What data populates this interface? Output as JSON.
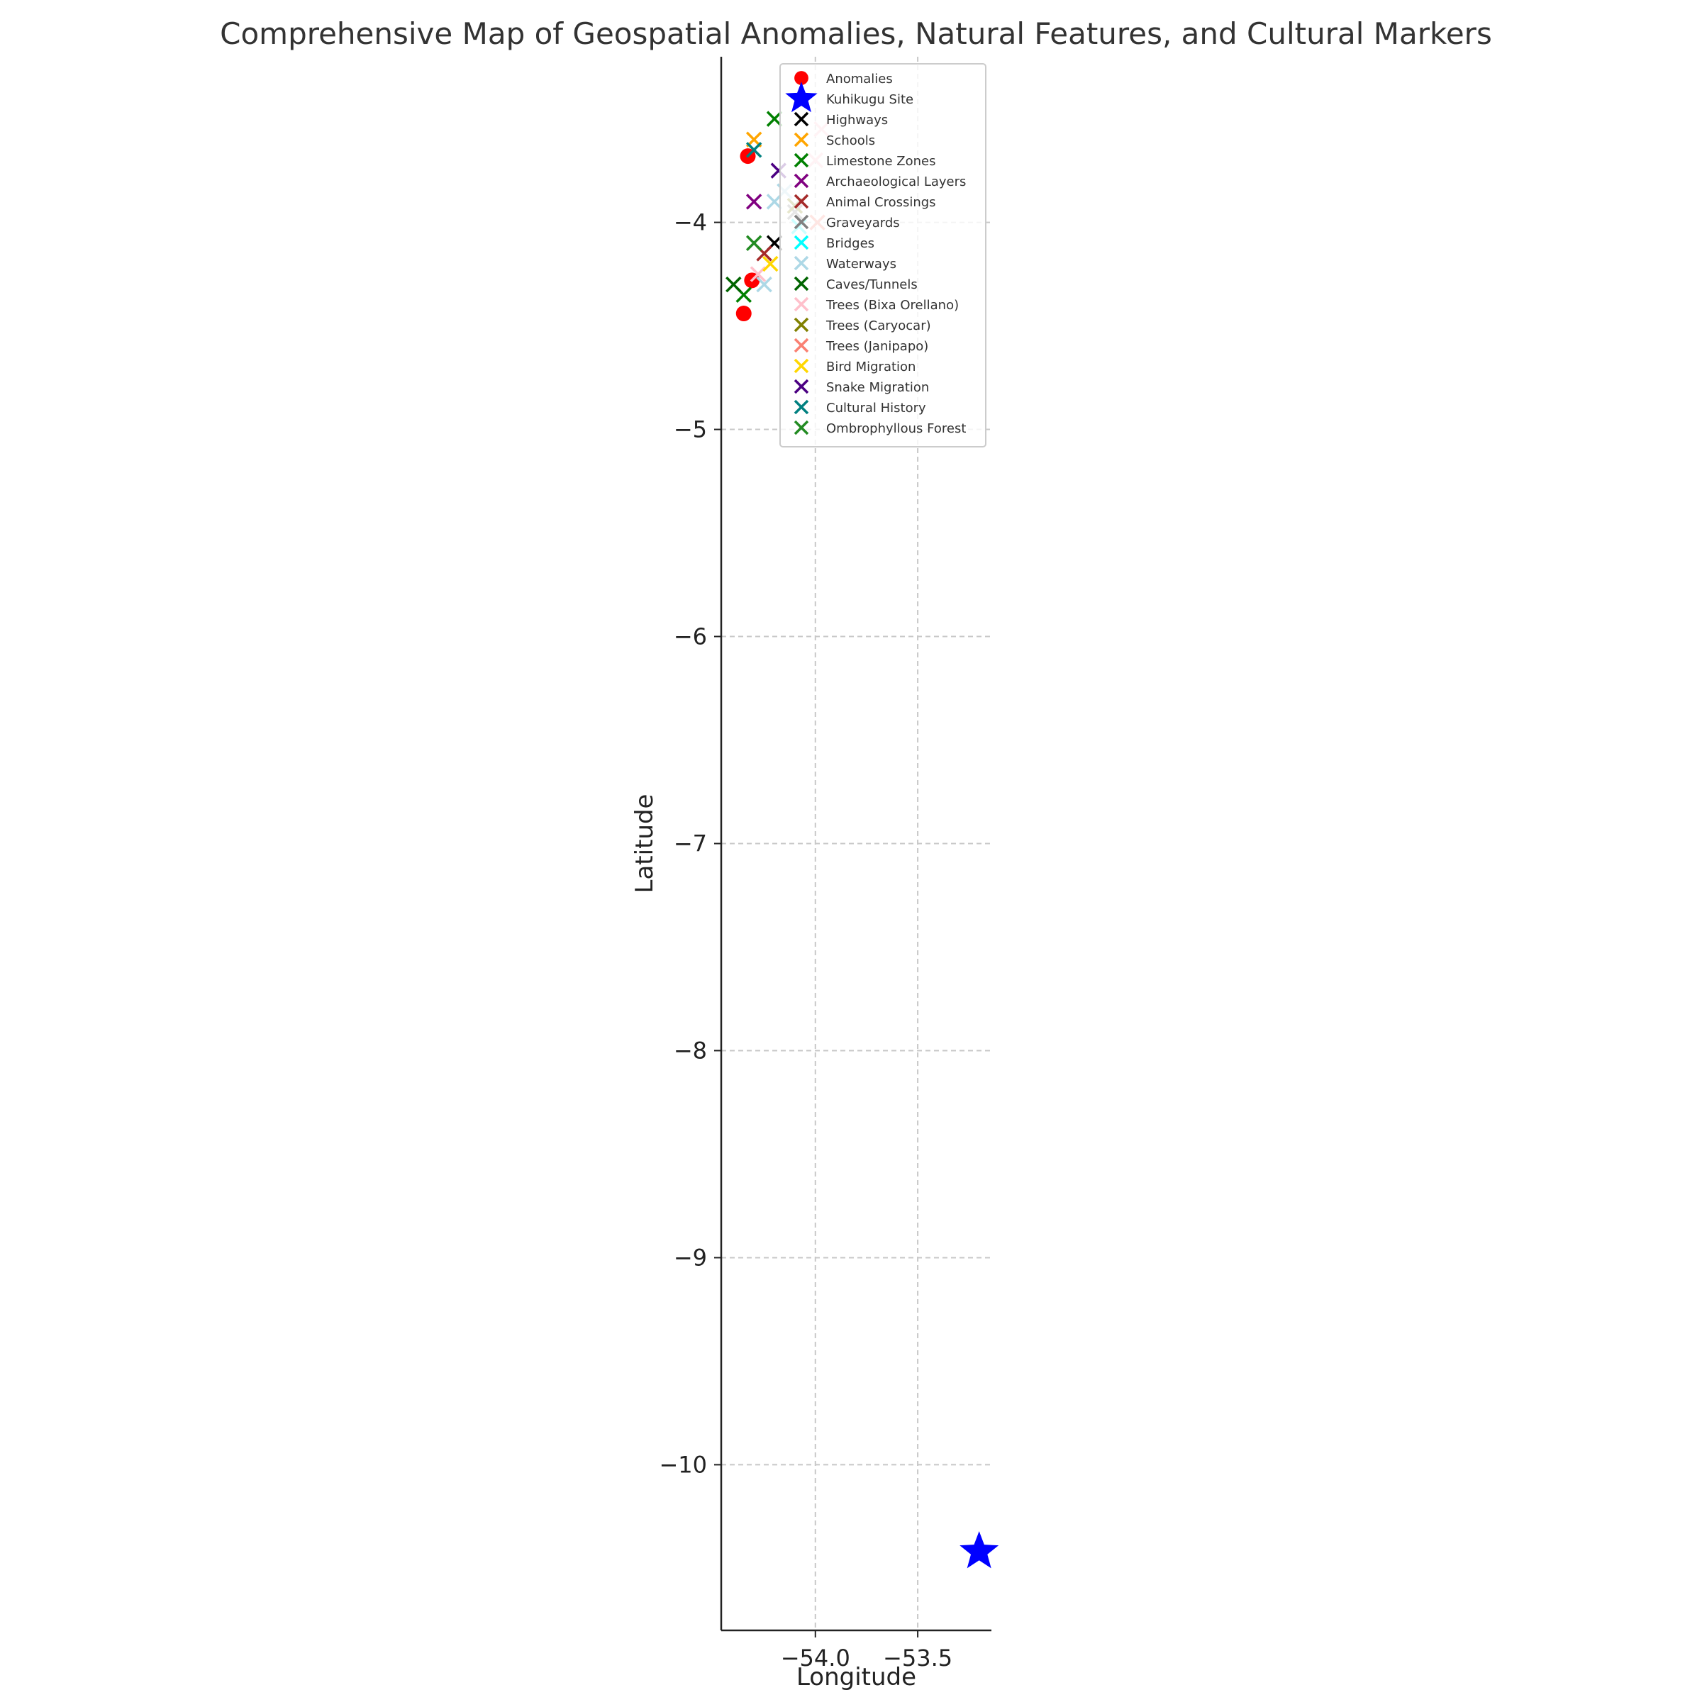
{
  "chart_data": {
    "type": "scatter",
    "title": "Comprehensive Map of Geospatial Anomalies, Natural Features, and Cultural Markers",
    "xlabel": "Longitude",
    "ylabel": "Latitude",
    "xlim": [
      -54.46,
      -53.14
    ],
    "ylim": [
      -10.8,
      -3.2
    ],
    "xticks": [
      -54.0,
      -53.5
    ],
    "xtick_labels": [
      "−54.0",
      "−53.5"
    ],
    "yticks": [
      -4,
      -5,
      -6,
      -7,
      -8,
      -9,
      -10
    ],
    "ytick_labels": [
      "−4",
      "−5",
      "−6",
      "−7",
      "−8",
      "−9",
      "−10"
    ],
    "grid": true,
    "legend_position": "top-right",
    "series": [
      {
        "name": "Anomalies",
        "marker": "circle",
        "color": "#ff0000",
        "points": [
          [
            -54.33,
            -3.68
          ],
          [
            -54.31,
            -4.28
          ],
          [
            -54.35,
            -4.44
          ]
        ]
      },
      {
        "name": "Kuhikugu Site",
        "marker": "star",
        "color": "#0000ff",
        "points": [
          [
            -53.2,
            -10.42
          ]
        ]
      },
      {
        "name": "Highways",
        "marker": "x",
        "color": "#000000",
        "points": [
          [
            -54.2,
            -4.1
          ]
        ]
      },
      {
        "name": "Schools",
        "marker": "x",
        "color": "#ffa500",
        "points": [
          [
            -54.3,
            -3.6
          ]
        ]
      },
      {
        "name": "Limestone Zones",
        "marker": "x",
        "color": "#008000",
        "points": [
          [
            -54.2,
            -3.5
          ],
          [
            -54.35,
            -4.35
          ]
        ]
      },
      {
        "name": "Archaeological Layers",
        "marker": "x",
        "color": "#800080",
        "points": [
          [
            -54.3,
            -3.9
          ]
        ]
      },
      {
        "name": "Animal Crossings",
        "marker": "x",
        "color": "#a52a2a",
        "points": [
          [
            -54.25,
            -4.15
          ]
        ]
      },
      {
        "name": "Graveyards",
        "marker": "x",
        "color": "#808080",
        "points": [
          [
            -54.1,
            -3.95
          ]
        ]
      },
      {
        "name": "Bridges",
        "marker": "x",
        "color": "#00ffff",
        "points": [
          [
            -54.08,
            -4.02
          ]
        ]
      },
      {
        "name": "Waterways",
        "marker": "x",
        "color": "#add8e6",
        "points": [
          [
            -54.2,
            -3.9
          ],
          [
            -54.25,
            -4.3
          ],
          [
            -54.15,
            -3.85
          ]
        ]
      },
      {
        "name": "Caves/Tunnels",
        "marker": "x",
        "color": "#006400",
        "points": [
          [
            -54.4,
            -4.3
          ]
        ]
      },
      {
        "name": "Trees (Bixa Orellano)",
        "marker": "x",
        "color": "#ffc0cb",
        "points": [
          [
            -54.28,
            -4.25
          ],
          [
            -54.0,
            -3.7
          ],
          [
            -53.97,
            -3.55
          ]
        ]
      },
      {
        "name": "Trees (Caryocar)",
        "marker": "x",
        "color": "#808000",
        "points": [
          [
            -54.1,
            -3.92
          ]
        ]
      },
      {
        "name": "Trees (Janipapo)",
        "marker": "x",
        "color": "#fa8072",
        "points": [
          [
            -53.99,
            -4.0
          ]
        ]
      },
      {
        "name": "Bird Migration",
        "marker": "x",
        "color": "#ffd700",
        "points": [
          [
            -54.22,
            -4.2
          ]
        ]
      },
      {
        "name": "Snake Migration",
        "marker": "x",
        "color": "#4b0082",
        "points": [
          [
            -54.18,
            -3.75
          ]
        ]
      },
      {
        "name": "Cultural History",
        "marker": "x",
        "color": "#008080",
        "points": [
          [
            -54.3,
            -3.65
          ]
        ]
      },
      {
        "name": "Ombrophyllous Forest",
        "marker": "x",
        "color": "#228b22",
        "points": [
          [
            -54.3,
            -4.1
          ]
        ]
      }
    ]
  }
}
